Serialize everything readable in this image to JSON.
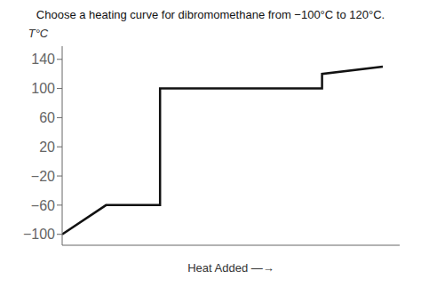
{
  "chart_data": {
    "type": "line",
    "title": "Choose a heating curve for dibromomethane from −100°C to 120°C.",
    "xlabel": "Heat Added —→",
    "ylabel": "T°C",
    "x": [
      0.0,
      1.3,
      1.3,
      2.9,
      2.9,
      5.3,
      5.3,
      7.7,
      7.7,
      9.5
    ],
    "values": [
      -100,
      -60,
      -60,
      -60,
      100,
      100,
      100,
      100,
      120,
      130
    ],
    "color": "#111111",
    "xlim": [
      0,
      10
    ],
    "ylim": [
      -115,
      158
    ],
    "yticks": [
      {
        "value": -100,
        "label": "−100"
      },
      {
        "value": -60,
        "label": "−60"
      },
      {
        "value": -20,
        "label": "−20"
      },
      20,
      60,
      100,
      140
    ],
    "tick_labels": "y",
    "grid": false
  }
}
